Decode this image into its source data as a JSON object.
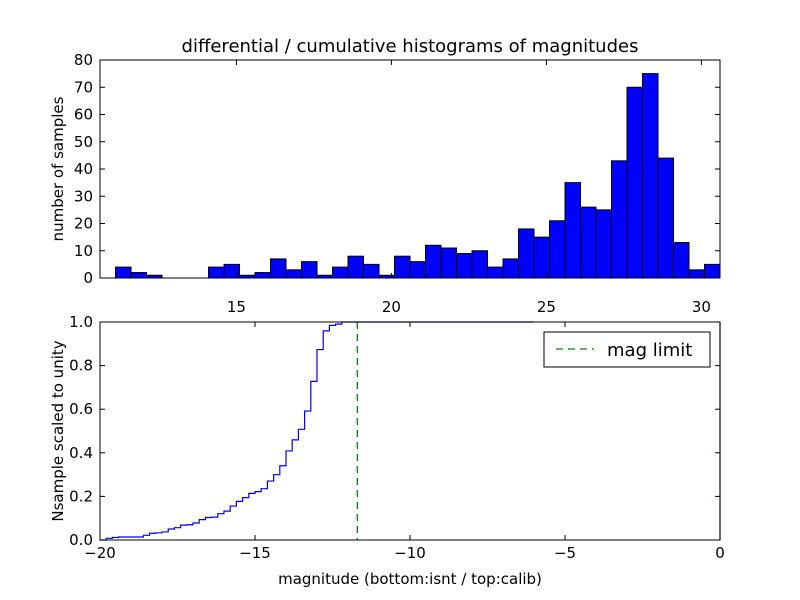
{
  "chart_data": [
    {
      "type": "bar",
      "title": "differential / cumulative histograms of magnitudes",
      "ylabel": "number of samples",
      "xlim": [
        10.6,
        30.6
      ],
      "ylim": [
        0,
        80
      ],
      "x_ticks": [
        15,
        20,
        25,
        30
      ],
      "y_ticks": [
        0,
        10,
        20,
        30,
        40,
        50,
        60,
        70,
        80
      ],
      "x_tick_labels": [
        "15",
        "20",
        "25",
        "30"
      ],
      "y_tick_labels": [
        "0",
        "10",
        "20",
        "30",
        "40",
        "50",
        "60",
        "70",
        "80"
      ],
      "bin_start": 11.1,
      "bin_width": 0.5,
      "values": [
        4,
        2,
        1,
        0,
        0,
        0,
        4,
        5,
        1,
        2,
        7,
        3,
        6,
        1,
        4,
        8,
        5,
        1,
        8,
        6,
        12,
        11,
        9,
        10,
        4,
        7,
        18,
        15,
        21,
        35,
        26,
        25,
        43,
        70,
        75,
        44,
        13,
        3,
        5
      ],
      "bar_color": "#0000ff"
    },
    {
      "type": "line",
      "ylabel": "Nsample scaled to unity",
      "xlabel": "magnitude (bottom:isnt / top:calib)",
      "xlim": [
        -20,
        0
      ],
      "ylim": [
        0.0,
        1.0
      ],
      "x_ticks": [
        -20,
        -15,
        -10,
        -5,
        0
      ],
      "y_ticks": [
        0.0,
        0.2,
        0.4,
        0.6,
        0.8,
        1.0
      ],
      "x_tick_labels": [
        "−20",
        "−15",
        "−10",
        "−5",
        "0"
      ],
      "y_tick_labels": [
        "0.0",
        "0.2",
        "0.4",
        "0.6",
        "0.8",
        "1.0"
      ],
      "cumulative_start": -20,
      "cumulative_bin_width": 0.2,
      "cumulative_x_max": -6.0,
      "line_color": "#0000ff",
      "mag_limit": -11.7,
      "mag_limit_color": "#008000",
      "legend": {
        "label": "mag limit",
        "position": "upper-right"
      }
    }
  ]
}
